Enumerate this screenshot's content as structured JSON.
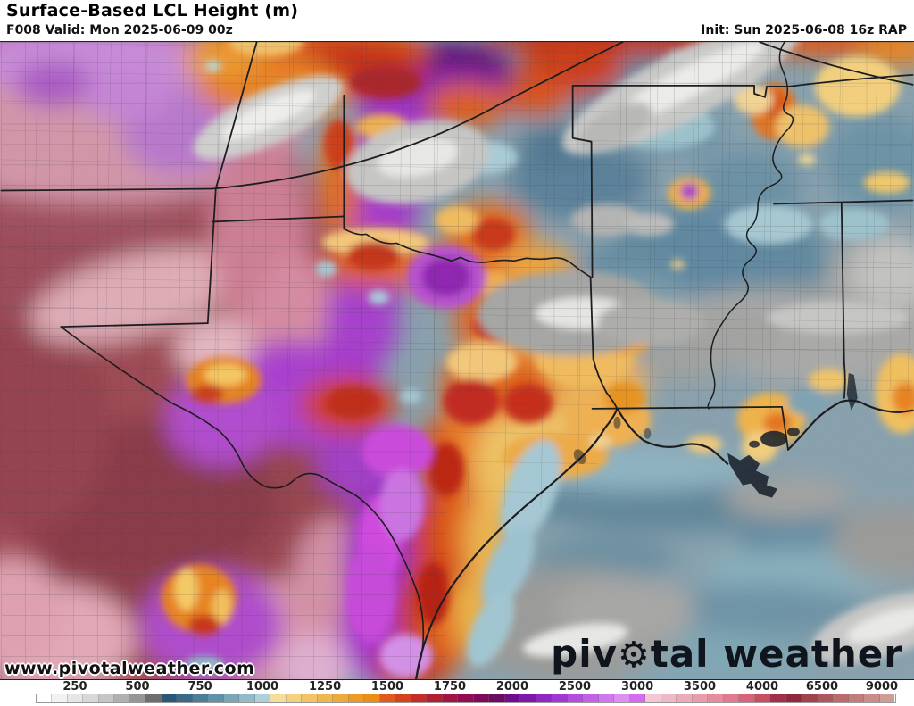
{
  "header": {
    "title": "Surface-Based LCL Height (m)",
    "forecast": "F008 Valid: Mon 2025-06-09 00z",
    "init": "Init: Sun 2025-06-08 16z RAP"
  },
  "map": {
    "watermark": "www.pivotalweather.com",
    "logo": {
      "pre": "piv",
      "gear_glyph": "⚙",
      "post": "tal weather"
    }
  },
  "chart_data": {
    "type": "heatmap",
    "title": "Surface-Based LCL Height (m)",
    "units": "m",
    "legend_position": "bottom",
    "scale_values": [
      250,
      500,
      750,
      1000,
      1250,
      1500,
      1750,
      2000,
      2500,
      3000,
      3500,
      4000,
      6500,
      9000
    ],
    "region_summary": "High LCL (3500-9000 m, maroon/rose) over New Mexico and far west Texas; 2000-3000 m purple band through central Texas; 1250-2000 m orange-red arc from the Texas panhandle through central Texas; low LCL (250-1000 m, gray and slate blue) over Oklahoma, Arkansas, Louisiana, Mississippi and the Gulf of Mexico with scattered 1000-1500 m orange spots along the Mississippi River"
  },
  "colorbar": {
    "ticks": [
      {
        "label": "250",
        "pos": 8.2
      },
      {
        "label": "500",
        "pos": 15.04
      },
      {
        "label": "750",
        "pos": 21.88
      },
      {
        "label": "1000",
        "pos": 28.71
      },
      {
        "label": "1250",
        "pos": 35.55
      },
      {
        "label": "1500",
        "pos": 42.38
      },
      {
        "label": "1750",
        "pos": 49.22
      },
      {
        "label": "2000",
        "pos": 56.05
      },
      {
        "label": "2500",
        "pos": 62.89
      },
      {
        "label": "3000",
        "pos": 69.73
      },
      {
        "label": "3500",
        "pos": 76.56
      },
      {
        "label": "4000",
        "pos": 83.4
      },
      {
        "label": "6500",
        "pos": 89.94
      },
      {
        "label": "9000",
        "pos": 96.48
      }
    ],
    "cells": [
      "#ffffff",
      "#f2f2f0",
      "#e6e6e4",
      "#d8d8d6",
      "#c6c6c4",
      "#b0b0ae",
      "#969694",
      "#6e6e6c",
      "#2c5878",
      "#3a6a88",
      "#4c7e98",
      "#6292a8",
      "#7aa6b6",
      "#93bac8",
      "#aed0d8",
      "#f6dd9a",
      "#f4d180",
      "#f2c466",
      "#f0b74e",
      "#eeaa38",
      "#ec9c26",
      "#ea8e14",
      "#e05a1e",
      "#d4421e",
      "#c52e28",
      "#b21e36",
      "#a11444",
      "#8f0d50",
      "#7d0a5a",
      "#6d0a64",
      "#6e0d90",
      "#7f18aa",
      "#9126c2",
      "#a337d4",
      "#b44ce0",
      "#c360e8",
      "#d078ee",
      "#dc90f2",
      "#d76bf0",
      "#f2c9d2",
      "#efbac5",
      "#ecabb8",
      "#e99cab",
      "#e68d9e",
      "#e27b8e",
      "#d8647a",
      "#c84e64",
      "#a03048",
      "#8f2a3e",
      "#9e4450",
      "#ac5860",
      "#b86c6e",
      "#c27e7c",
      "#ca8e8a",
      "#d09c96"
    ]
  }
}
